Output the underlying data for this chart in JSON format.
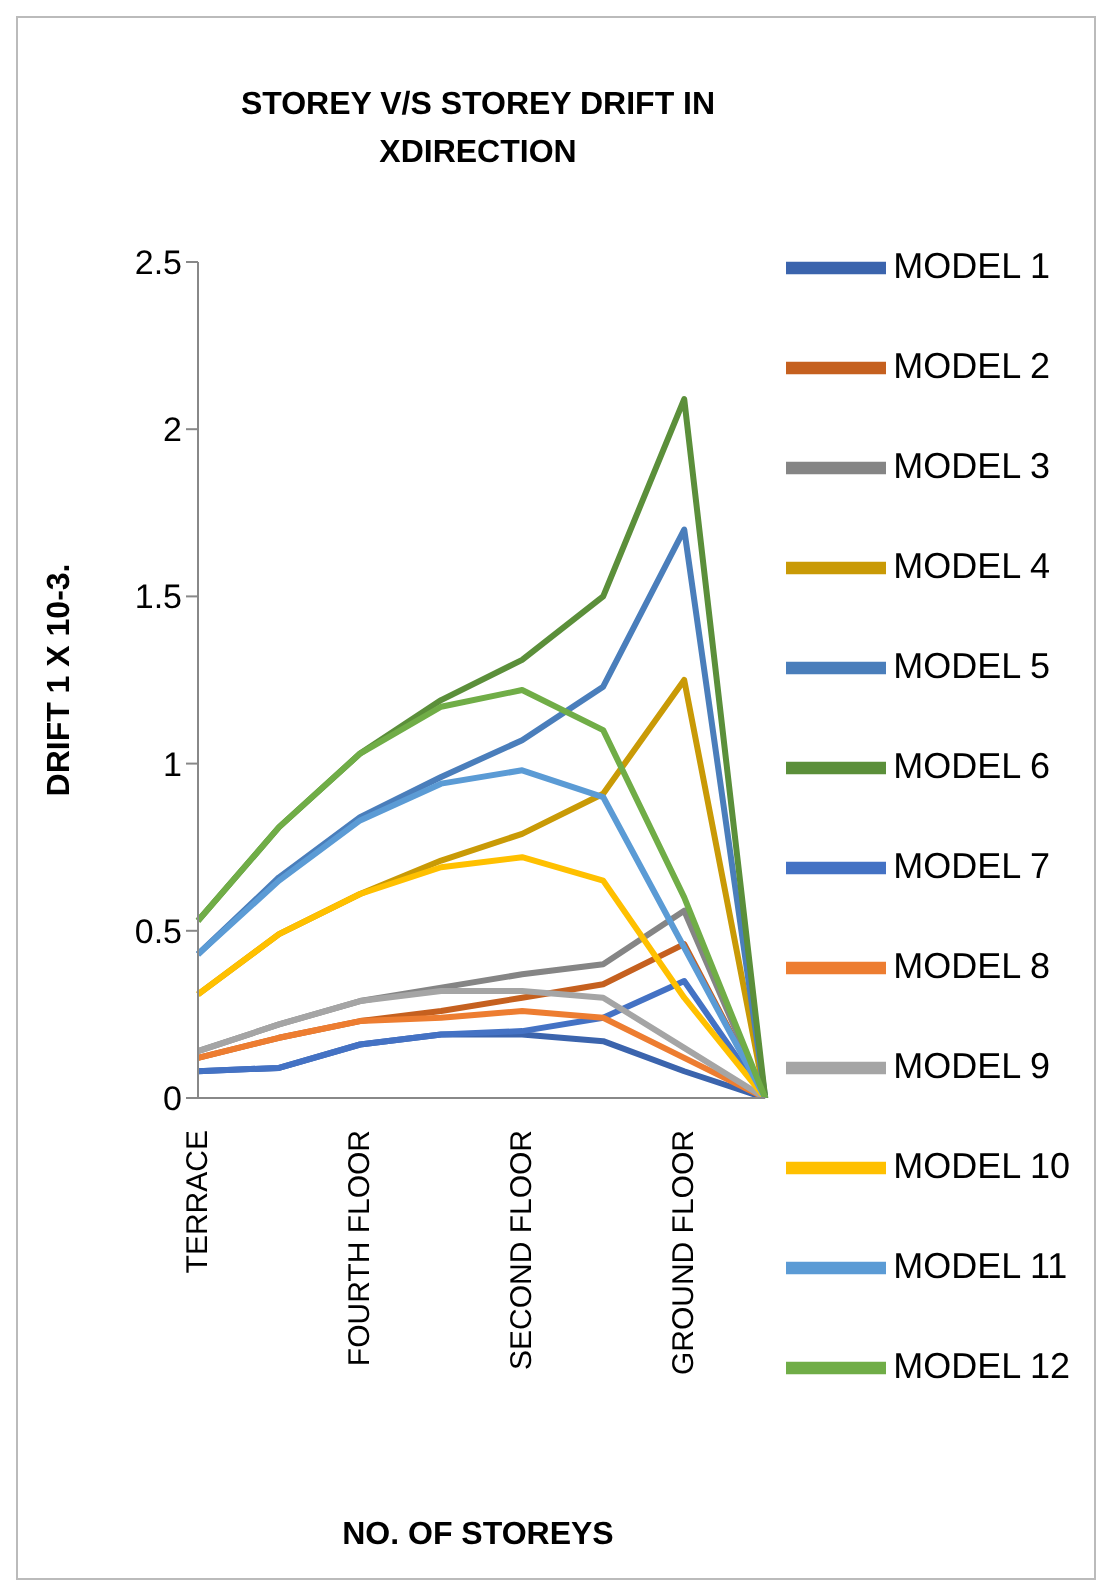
{
  "chart_data": {
    "type": "line",
    "title": "STOREY V/S STOREY DRIFT IN XDIRECTION",
    "xlabel": "NO. OF STOREYS",
    "ylabel": "DRIFT 1 X 10-3.",
    "categories": [
      "TERRACE",
      null,
      "FOURTH FLOOR",
      null,
      "SECOND FLOOR",
      null,
      "GROUND FLOOR",
      null
    ],
    "ylim": [
      0,
      2.5
    ],
    "yticks": [
      0,
      0.5,
      1,
      1.5,
      2,
      2.5
    ],
    "grid": false,
    "legend": "right",
    "marker": "none",
    "line_style": "solid",
    "series": [
      {
        "name": "MODEL 1",
        "color": "#3b64ad",
        "values": [
          0.08,
          0.09,
          0.16,
          0.19,
          0.19,
          0.17,
          0.08,
          0
        ]
      },
      {
        "name": "MODEL 2",
        "color": "#c5601f",
        "values": [
          0.12,
          0.18,
          0.23,
          0.26,
          0.3,
          0.34,
          0.46,
          0
        ]
      },
      {
        "name": "MODEL 3",
        "color": "#858585",
        "values": [
          0.14,
          0.22,
          0.29,
          0.33,
          0.37,
          0.4,
          0.56,
          0
        ]
      },
      {
        "name": "MODEL 4",
        "color": "#c99a06",
        "values": [
          0.31,
          0.49,
          0.61,
          0.71,
          0.79,
          0.91,
          1.25,
          0
        ]
      },
      {
        "name": "MODEL 5",
        "color": "#4a7ebb",
        "values": [
          0.43,
          0.66,
          0.84,
          0.96,
          1.07,
          1.23,
          1.7,
          0
        ]
      },
      {
        "name": "MODEL 6",
        "color": "#5b8f3a",
        "values": [
          0.53,
          0.81,
          1.03,
          1.19,
          1.31,
          1.5,
          2.09,
          0
        ]
      },
      {
        "name": "MODEL 7",
        "color": "#4472c4",
        "values": [
          0.08,
          0.09,
          0.16,
          0.19,
          0.2,
          0.24,
          0.35,
          0
        ]
      },
      {
        "name": "MODEL 8",
        "color": "#ed7d31",
        "values": [
          0.12,
          0.18,
          0.23,
          0.24,
          0.26,
          0.24,
          0.12,
          0
        ]
      },
      {
        "name": "MODEL 9",
        "color": "#a5a5a5",
        "values": [
          0.14,
          0.22,
          0.29,
          0.32,
          0.32,
          0.3,
          0.15,
          0
        ]
      },
      {
        "name": "MODEL 10",
        "color": "#ffc000",
        "values": [
          0.31,
          0.49,
          0.61,
          0.69,
          0.72,
          0.65,
          0.3,
          0
        ]
      },
      {
        "name": "MODEL 11",
        "color": "#5b9bd5",
        "values": [
          0.43,
          0.65,
          0.83,
          0.94,
          0.98,
          0.9,
          0.45,
          0
        ]
      },
      {
        "name": "MODEL 12",
        "color": "#70ad47",
        "values": [
          0.53,
          0.81,
          1.03,
          1.17,
          1.22,
          1.1,
          0.6,
          0
        ]
      }
    ]
  }
}
